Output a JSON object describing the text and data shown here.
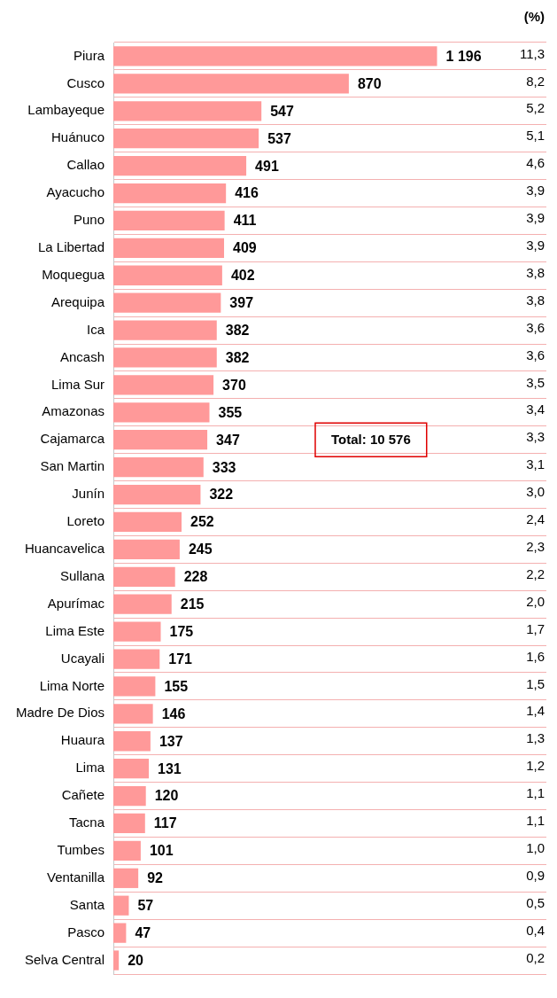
{
  "chart_data": {
    "type": "bar",
    "orientation": "horizontal",
    "categories": [
      "Piura",
      "Cusco",
      "Lambayeque",
      "Huánuco",
      "Callao",
      "Ayacucho",
      "Puno",
      "La Libertad",
      "Moquegua",
      "Arequipa",
      "Ica",
      "Ancash",
      "Lima Sur",
      "Amazonas",
      "Cajamarca",
      "San Martin",
      "Junín",
      "Loreto",
      "Huancavelica",
      "Sullana",
      "Apurímac",
      "Lima Este",
      "Ucayali",
      "Lima Norte",
      "Madre De Dios",
      "Huaura",
      "Lima",
      "Cañete",
      "Tacna",
      "Tumbes",
      "Ventanilla",
      "Santa",
      "Pasco",
      "Selva Central"
    ],
    "values": [
      1196,
      870,
      547,
      537,
      491,
      416,
      411,
      409,
      402,
      397,
      382,
      382,
      370,
      355,
      347,
      333,
      322,
      252,
      245,
      228,
      215,
      175,
      171,
      155,
      146,
      137,
      131,
      120,
      117,
      101,
      92,
      57,
      47,
      20
    ],
    "color": "#ff9999",
    "value_labels": [
      "1 196",
      "870",
      "547",
      "537",
      "491",
      "416",
      "411",
      "409",
      "402",
      "397",
      "382",
      "382",
      "370",
      "355",
      "347",
      "333",
      "322",
      "252",
      "245",
      "228",
      "215",
      "175",
      "171",
      "155",
      "146",
      "137",
      "131",
      "120",
      "117",
      "101",
      "92",
      "57",
      "47",
      "20"
    ],
    "grid": "y",
    "legend": false,
    "annotations": [
      "Total: 10 576",
      "(%)",
      "11,3",
      "8,2",
      "5,2",
      "5,1",
      "4,6",
      "3,9",
      "3,9",
      "3,9",
      "3,8",
      "3,8",
      "3,6",
      "3,6",
      "3,5",
      "3,4",
      "3,3",
      "3,1",
      "3,0",
      "2,4",
      "2,3",
      "2,2",
      "2,0",
      "1,7",
      "1,6",
      "1,5",
      "1,4",
      "1,3",
      "1,2",
      "1,1",
      "1,1",
      "1,0",
      "0,9",
      "0,5",
      "0,4",
      "0,2"
    ]
  }
}
